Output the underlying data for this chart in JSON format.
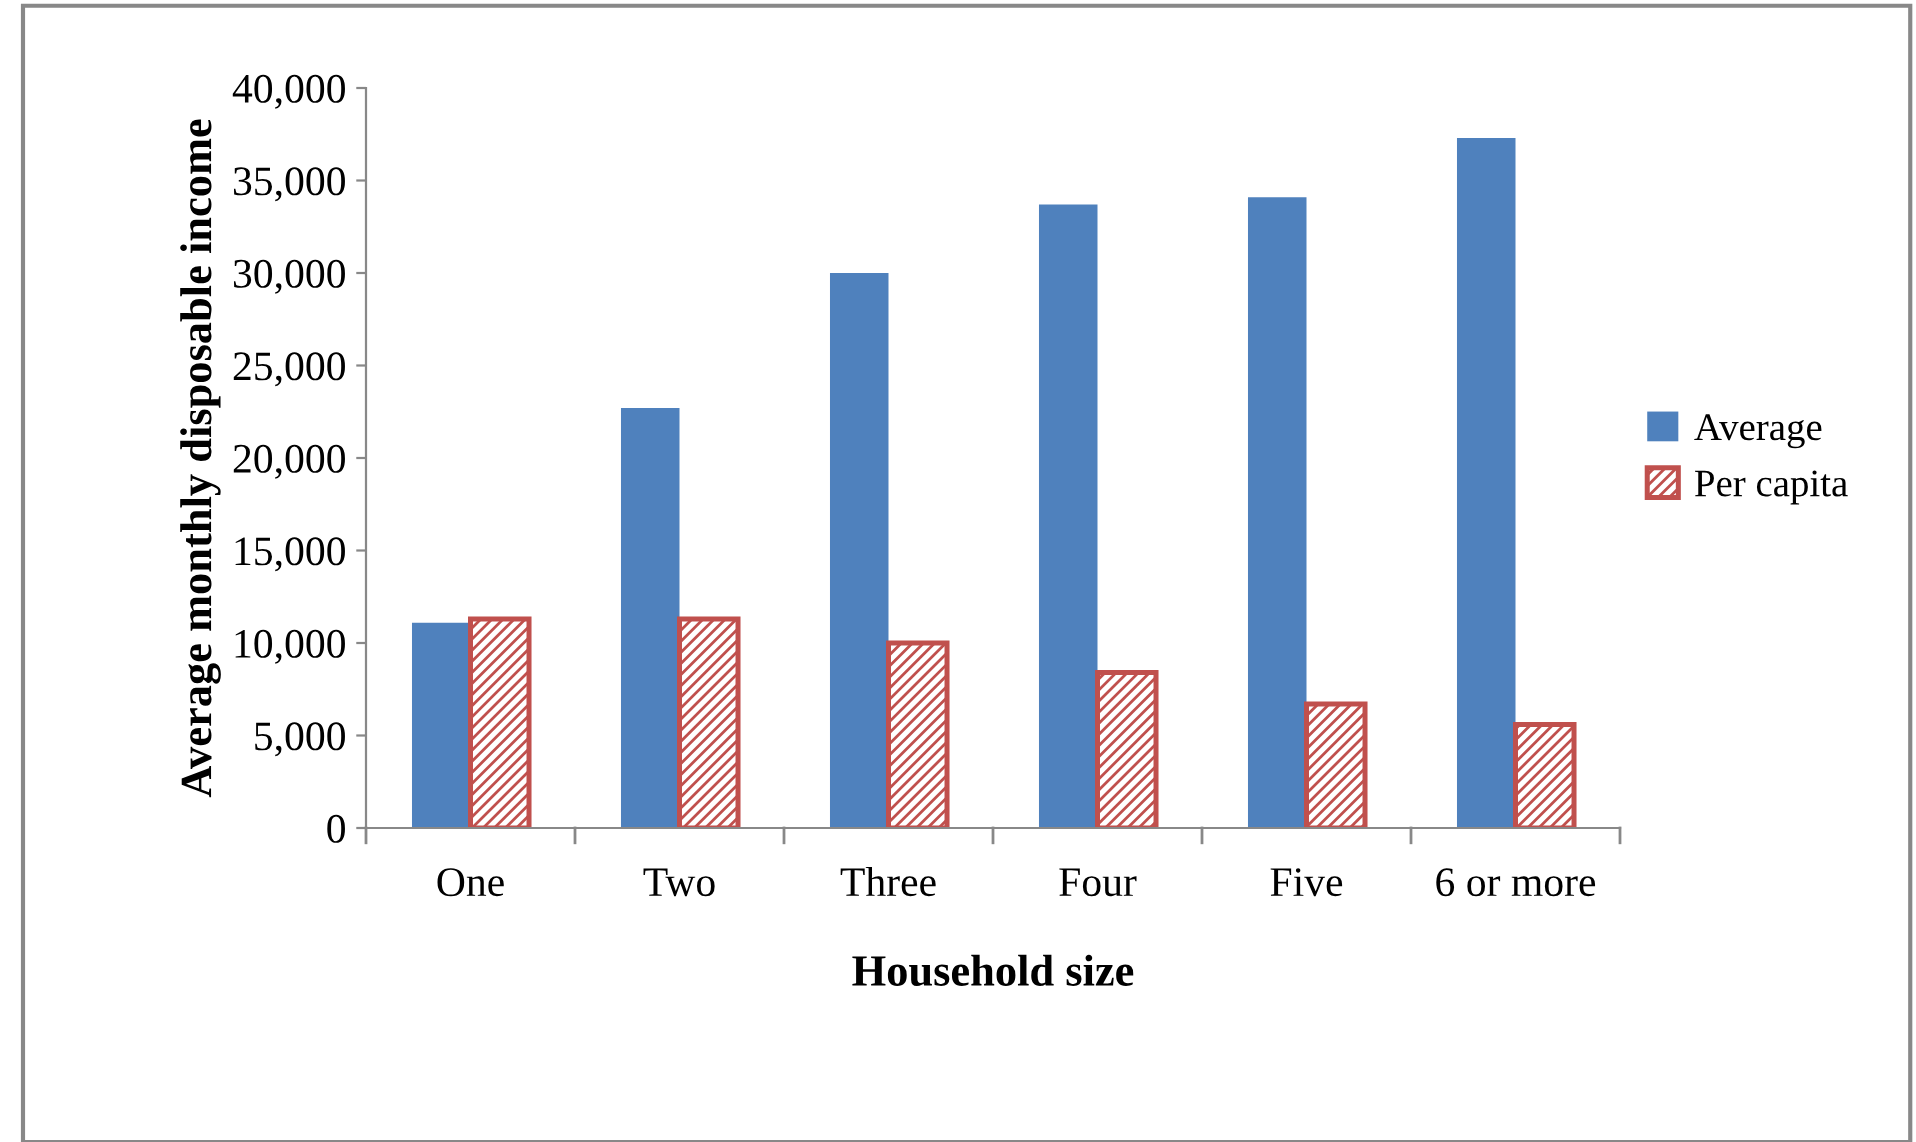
{
  "chart_data": {
    "type": "bar",
    "xlabel": "Household size",
    "ylabel": "Average monthly disposable income",
    "categories": [
      "One",
      "Two",
      "Three",
      "Four",
      "Five",
      "6 or more"
    ],
    "series": [
      {
        "name": "Average",
        "color": "#4f81bd",
        "values": [
          11100,
          22700,
          30000,
          33700,
          34100,
          37300
        ]
      },
      {
        "name": "Per capita",
        "color": "#c0504d",
        "values": [
          11300,
          11300,
          10000,
          8400,
          6700,
          5600
        ]
      }
    ],
    "ylim": [
      0,
      40000
    ],
    "yticks": [
      0,
      {
        "value": 5000,
        "label": "5,000"
      },
      {
        "value": 10000,
        "label": "10,000"
      },
      {
        "value": 15000,
        "label": "15,000"
      },
      {
        "value": 20000,
        "label": "20,000"
      },
      {
        "value": 25000,
        "label": "25,000"
      },
      {
        "value": 30000,
        "label": "30,000"
      },
      {
        "value": 35000,
        "label": "35,000"
      },
      {
        "value": 40000,
        "label": "40,000"
      }
    ],
    "grid": false,
    "legend": "right"
  }
}
